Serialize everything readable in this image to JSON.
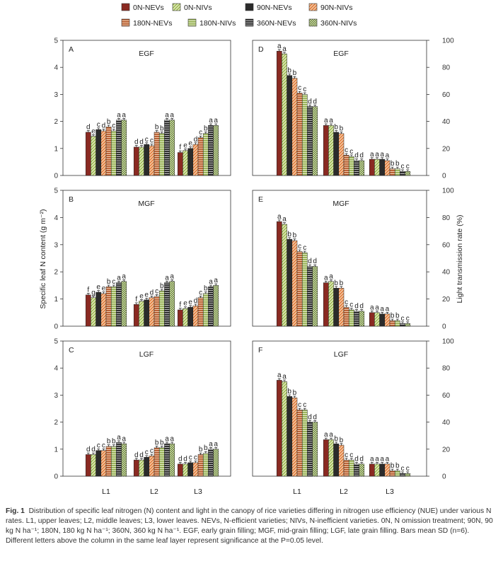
{
  "legend": [
    {
      "label": "0N-NEVs",
      "color": "#8a2a22",
      "pattern": "solid"
    },
    {
      "label": "0N-NIVs",
      "color": "#8fb04a",
      "pattern": "solid"
    },
    {
      "label": "90N-NEVs",
      "color": "#2a2a2a",
      "pattern": "solid"
    },
    {
      "label": "90N-NIVs",
      "color": "#d97b3a",
      "pattern": "solid"
    },
    {
      "label": "180N-NEVs",
      "color": "#b8582a",
      "pattern": "hstripe"
    },
    {
      "label": "180N-NIVs",
      "color": "#9ab45a",
      "pattern": "solid"
    },
    {
      "label": "360N-NEVs",
      "color": "#1e1e1e",
      "pattern": "solid"
    },
    {
      "label": "360N-NIVs",
      "color": "#2a2a2a",
      "pattern": "check"
    }
  ],
  "series_styles": [
    {
      "color": "#8a2a22",
      "pattern": "solid"
    },
    {
      "color": "#9ab84e",
      "pattern": "diag"
    },
    {
      "color": "#2b2b2b",
      "pattern": "solid"
    },
    {
      "color": "#e0793a",
      "pattern": "diag"
    },
    {
      "color": "#b05226",
      "pattern": "hstripe"
    },
    {
      "color": "#8fac4a",
      "pattern": "hstripe"
    },
    {
      "color": "#222222",
      "pattern": "hstripe"
    },
    {
      "color": "#6f8f3a",
      "pattern": "check"
    }
  ],
  "y_axis_label_left": "Specific leaf N content (g m⁻²)",
  "y_axis_label_right": "Light transmission rate (%)",
  "chart_data": [
    {
      "panel": "A",
      "title": "EGF",
      "type": "bar",
      "categories": [
        "L1",
        "L2",
        "L3"
      ],
      "ylim": [
        0,
        5
      ],
      "yticks": [
        0,
        1,
        2,
        3,
        4,
        5
      ],
      "values": [
        [
          1.6,
          1.45,
          1.7,
          1.65,
          1.8,
          1.65,
          2.05,
          2.05
        ],
        [
          1.05,
          1.05,
          1.15,
          1.1,
          1.6,
          1.55,
          2.05,
          2.05
        ],
        [
          0.85,
          0.92,
          1.0,
          1.15,
          1.4,
          1.55,
          1.85,
          1.85
        ]
      ],
      "letters": [
        [
          "d",
          "e",
          "c",
          "d",
          "b",
          "c",
          "a",
          "a"
        ],
        [
          "d",
          "d",
          "c",
          "c",
          "b",
          "b",
          "a",
          "a"
        ],
        [
          "f",
          "e",
          "e",
          "d",
          "c",
          "b",
          "a",
          "a"
        ]
      ]
    },
    {
      "panel": "B",
      "title": "MGF",
      "type": "bar",
      "categories": [
        "L1",
        "L2",
        "L3"
      ],
      "ylim": [
        0,
        5
      ],
      "yticks": [
        0,
        1,
        2,
        3,
        4,
        5
      ],
      "values": [
        [
          1.15,
          1.05,
          1.25,
          1.2,
          1.45,
          1.45,
          1.6,
          1.65
        ],
        [
          0.8,
          0.92,
          0.97,
          1.05,
          1.1,
          1.3,
          1.6,
          1.65
        ],
        [
          0.6,
          0.65,
          0.7,
          0.75,
          1.05,
          1.2,
          1.45,
          1.5
        ]
      ],
      "letters": [
        [
          "f",
          "g",
          "e",
          "e",
          "b",
          "c",
          "a",
          "a"
        ],
        [
          "f",
          "e",
          "e",
          "d",
          "c",
          "b",
          "a",
          "a"
        ],
        [
          "f",
          "e",
          "e",
          "d",
          "c",
          "b",
          "a",
          "a"
        ]
      ]
    },
    {
      "panel": "C",
      "title": "LGF",
      "type": "bar",
      "categories": [
        "L1",
        "L2",
        "L3"
      ],
      "ylim": [
        0,
        5
      ],
      "yticks": [
        0,
        1,
        2,
        3,
        4,
        5
      ],
      "values": [
        [
          0.8,
          0.8,
          0.95,
          0.95,
          1.1,
          1.1,
          1.25,
          1.2
        ],
        [
          0.6,
          0.6,
          0.7,
          0.75,
          1.05,
          1.05,
          1.2,
          1.2
        ],
        [
          0.45,
          0.45,
          0.5,
          0.5,
          0.8,
          0.85,
          1.0,
          1.0
        ]
      ],
      "letters": [
        [
          "d",
          "d",
          "c",
          "c",
          "b",
          "b",
          "a",
          "a"
        ],
        [
          "d",
          "d",
          "c",
          "c",
          "b",
          "b",
          "a",
          "a"
        ],
        [
          "d",
          "d",
          "c",
          "c",
          "b",
          "b",
          "a",
          "a"
        ]
      ]
    },
    {
      "panel": "D",
      "title": "EGF",
      "type": "bar",
      "categories": [
        "L1",
        "L2",
        "L3"
      ],
      "ylim": [
        0,
        100
      ],
      "yticks": [
        0,
        20,
        40,
        60,
        80,
        100
      ],
      "values": [
        [
          92,
          90,
          74,
          72,
          61,
          60,
          51,
          51
        ],
        [
          37,
          37,
          32,
          31,
          15,
          14,
          11,
          11
        ],
        [
          12,
          12,
          12,
          11,
          5,
          5,
          3,
          3
        ]
      ],
      "letters": [
        [
          "a",
          "a",
          "b",
          "b",
          "c",
          "c",
          "d",
          "d"
        ],
        [
          "a",
          "a",
          "b",
          "b",
          "c",
          "c",
          "d",
          "d"
        ],
        [
          "a",
          "a",
          "a",
          "a",
          "b",
          "b",
          "c",
          "c"
        ]
      ]
    },
    {
      "panel": "E",
      "title": "MGF",
      "type": "bar",
      "categories": [
        "L1",
        "L2",
        "L3"
      ],
      "ylim": [
        0,
        100
      ],
      "yticks": [
        0,
        20,
        40,
        60,
        80,
        100
      ],
      "values": [
        [
          77,
          75,
          64,
          63,
          55,
          54,
          44,
          44
        ],
        [
          32,
          33,
          28,
          28,
          14,
          12,
          11,
          11
        ],
        [
          10,
          10,
          9,
          9,
          4,
          4,
          2,
          2
        ]
      ],
      "letters": [
        [
          "a",
          "a",
          "b",
          "b",
          "c",
          "c",
          "d",
          "d"
        ],
        [
          "a",
          "a",
          "b",
          "b",
          "c",
          "c",
          "d",
          "d"
        ],
        [
          "a",
          "a",
          "a",
          "a",
          "b",
          "b",
          "c",
          "c"
        ]
      ]
    },
    {
      "panel": "F",
      "title": "LGF",
      "type": "bar",
      "categories": [
        "L1",
        "L2",
        "L3"
      ],
      "ylim": [
        0,
        100
      ],
      "yticks": [
        0,
        20,
        40,
        60,
        80,
        100
      ],
      "values": [
        [
          71,
          70,
          59,
          58,
          49,
          49,
          40,
          40
        ],
        [
          27,
          27,
          24,
          23,
          12,
          12,
          9,
          9
        ],
        [
          9,
          9,
          9,
          9,
          4,
          4,
          2,
          2
        ]
      ],
      "letters": [
        [
          "a",
          "a",
          "b",
          "b",
          "c",
          "c",
          "d",
          "d"
        ],
        [
          "a",
          "a",
          "b",
          "b",
          "c",
          "c",
          "d",
          "d"
        ],
        [
          "a",
          "a",
          "a",
          "a",
          "b",
          "b",
          "c",
          "c"
        ]
      ]
    }
  ],
  "caption": {
    "label": "Fig. 1",
    "text": "Distribution of specific leaf nitrogen (N) content and light in the canopy of rice varieties differing in nitrogen use efficiency (NUE) under various N rates. L1, upper leaves; L2, middle leaves; L3, lower leaves. NEVs, N-efficient varieties; NIVs, N-inefficient varieties. 0N, N omission treatment; 90N, 90 kg N ha⁻¹; 180N, 180 kg N ha⁻¹; 360N, 360 kg N ha⁻¹. EGF, early grain filling; MGF, mid-grain filling; LGF, late grain filling. Bars mean SD (n=6). Different letters above the column in the same leaf layer represent significance at the P=0.05 level."
  }
}
